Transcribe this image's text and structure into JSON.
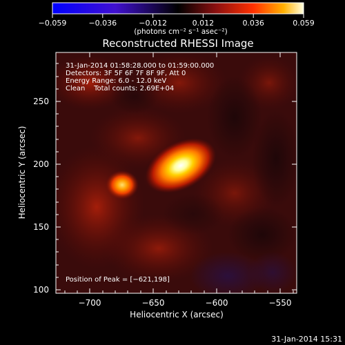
{
  "colorbar": {
    "ticks": [
      "−0.059",
      "−0.036",
      "−0.012",
      "0.012",
      "0.036",
      "0.059"
    ],
    "units": "(photons cm⁻² s⁻¹ asec⁻²)"
  },
  "title": "Reconstructed RHESSI Image",
  "info": {
    "time_range": "31-Jan-2014 01:58:28.000 to 01:59:00.000",
    "detectors": "Detectors: 3F 5F 6F 7F 8F 9F, Att 0",
    "energy": "Energy Range: 6.0 - 12.0 keV",
    "clean": "Clean    Total counts: 2.69E+04"
  },
  "peak_text": "Position of Peak = [−621,198]",
  "xaxis": {
    "label": "Heliocentric X (arcsec)",
    "ticks": [
      "−700",
      "−650",
      "−600",
      "−550"
    ]
  },
  "yaxis": {
    "label": "Heliocentric Y (arcsec)",
    "ticks": [
      "100",
      "150",
      "200",
      "250"
    ]
  },
  "timestamp": "31-Jan-2014 15:31",
  "colors": {
    "background": "#000000",
    "axes": "#ffffff"
  }
}
